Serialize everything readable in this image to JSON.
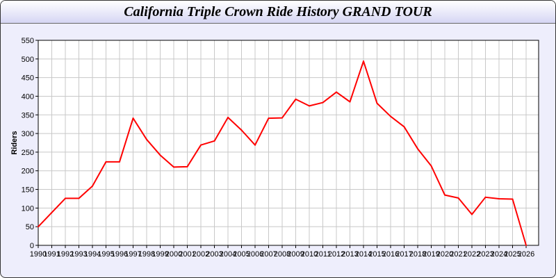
{
  "chart_data": {
    "type": "line",
    "title": "California Triple Crown Ride History GRAND TOUR",
    "xlabel": "",
    "ylabel": "Riders",
    "xlim": [
      1990,
      2027
    ],
    "ylim": [
      0,
      550
    ],
    "grid": true,
    "yticks": [
      0,
      50,
      100,
      150,
      200,
      250,
      300,
      350,
      400,
      450,
      500,
      550
    ],
    "x": [
      1990,
      1991,
      1992,
      1993,
      1994,
      1995,
      1996,
      1997,
      1998,
      1999,
      2000,
      2001,
      2002,
      2003,
      2004,
      2005,
      2006,
      2007,
      2008,
      2009,
      2010,
      2011,
      2012,
      2013,
      2014,
      2015,
      2016,
      2017,
      2018,
      2019,
      2020,
      2021,
      2022,
      2023,
      2024,
      2025,
      2026
    ],
    "series": [
      {
        "values": [
          50,
          88,
          126,
          126,
          159,
          224,
          224,
          341,
          284,
          242,
          210,
          211,
          269,
          280,
          343,
          309,
          269,
          341,
          342,
          392,
          374,
          383,
          411,
          385,
          494,
          381,
          346,
          318,
          259,
          213,
          135,
          127,
          83,
          129,
          125,
          124,
          0
        ],
        "color": "#ff0000"
      }
    ]
  }
}
